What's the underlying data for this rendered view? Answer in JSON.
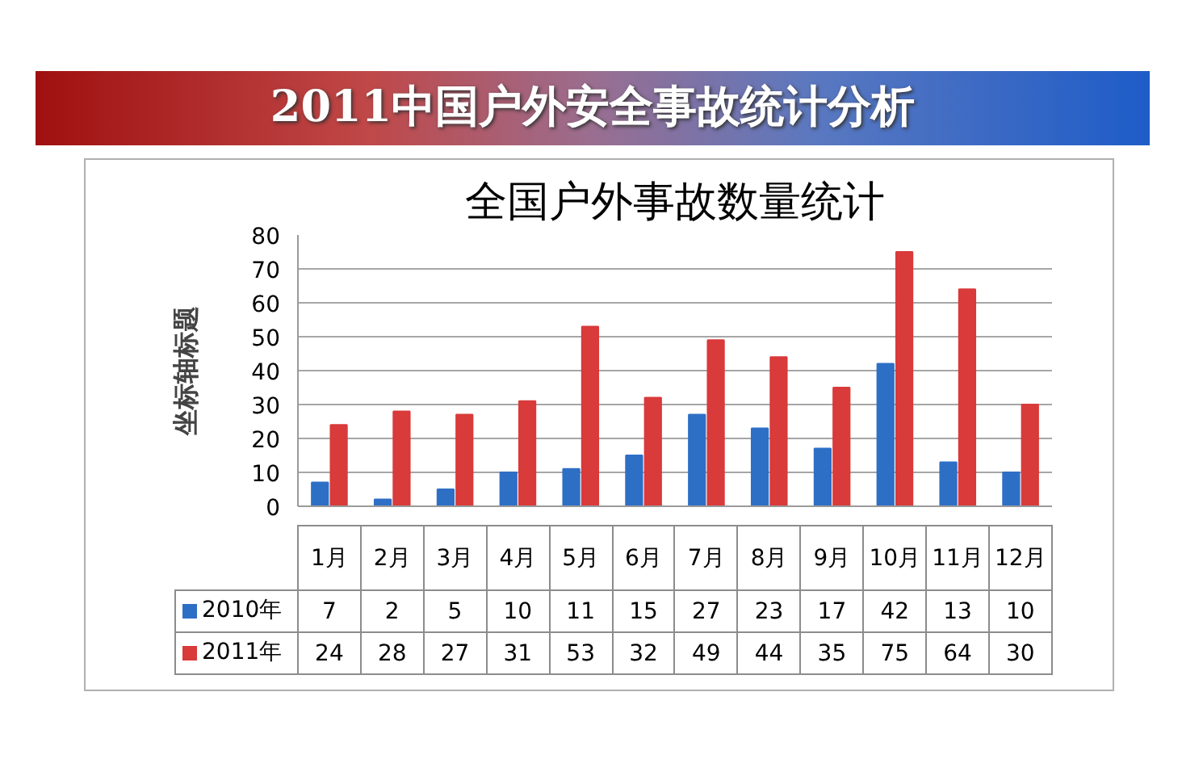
{
  "chart_data": {
    "type": "bar",
    "title": "2011中国户外安全事故统计分析",
    "subtitle": "全国户外事故数量统计",
    "ylabel": "坐标轴标题",
    "categories": [
      "1月",
      "2月",
      "3月",
      "4月",
      "5月",
      "6月",
      "7月",
      "8月",
      "9月",
      "10月",
      "11月",
      "12月"
    ],
    "series": [
      {
        "name": "2010年",
        "color": "#2e6fc6",
        "values": [
          7,
          2,
          5,
          10,
          11,
          15,
          27,
          23,
          17,
          42,
          13,
          10
        ]
      },
      {
        "name": "2011年",
        "color": "#d93a3a",
        "values": [
          24,
          28,
          27,
          31,
          53,
          32,
          49,
          44,
          35,
          75,
          64,
          30
        ]
      }
    ],
    "ylim": [
      0,
      80
    ],
    "yticks": [
      0,
      10,
      20,
      30,
      40,
      50,
      60,
      70,
      80
    ],
    "grid": "y",
    "legend": "bottom",
    "data_labels": true
  }
}
